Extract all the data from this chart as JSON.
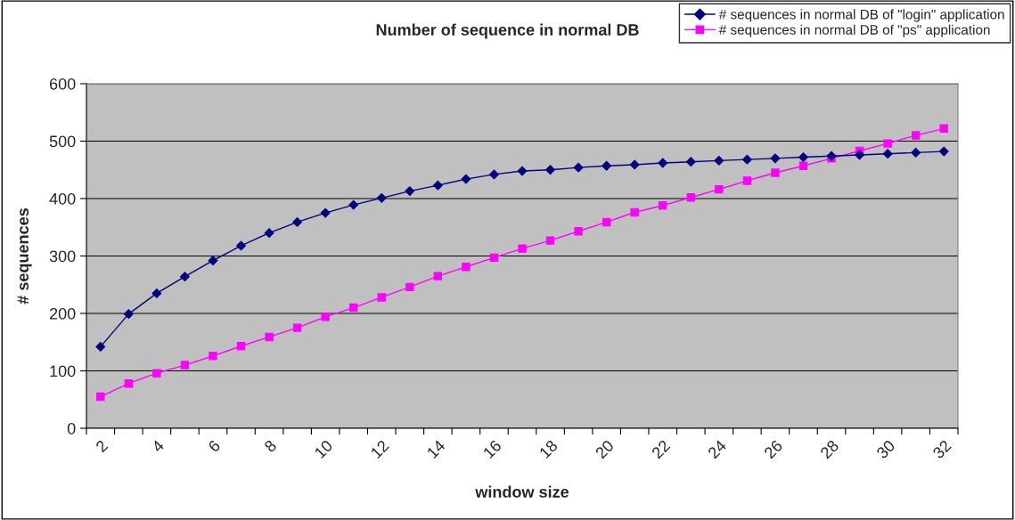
{
  "chart_data": {
    "type": "line",
    "title": "Number of sequence in normal DB",
    "xlabel": "window size",
    "ylabel": "# sequences",
    "categories": [
      "2",
      null,
      "4",
      null,
      "6",
      null,
      "8",
      null,
      "10",
      null,
      "12",
      null,
      "14",
      null,
      "16",
      null,
      "18",
      null,
      "20",
      null,
      "22",
      null,
      "24",
      null,
      "26",
      null,
      "28",
      null,
      "30",
      null,
      "32"
    ],
    "series": [
      {
        "name": "# sequences in normal DB of \"login\" application",
        "color": "#000080",
        "marker": "diamond",
        "values": [
          142,
          199,
          235,
          264,
          292,
          318,
          340,
          359,
          375,
          389,
          401,
          413,
          423,
          434,
          442,
          448,
          450,
          454,
          457,
          459,
          462,
          464,
          466,
          468,
          470,
          472,
          474,
          476,
          478,
          480,
          482
        ]
      },
      {
        "name": "# sequences in normal DB of \"ps\" application",
        "color": "#ff00ff",
        "marker": "square",
        "values": [
          55,
          78,
          96,
          110,
          126,
          143,
          159,
          175,
          194,
          210,
          228,
          246,
          265,
          281,
          297,
          313,
          327,
          343,
          359,
          376,
          388,
          402,
          416,
          431,
          445,
          457,
          470,
          483,
          496,
          510,
          522
        ]
      }
    ],
    "ylim": [
      0,
      600
    ],
    "yticks": [
      0,
      100,
      200,
      300,
      400,
      500,
      600
    ],
    "grid": "y",
    "legend": "top right"
  }
}
